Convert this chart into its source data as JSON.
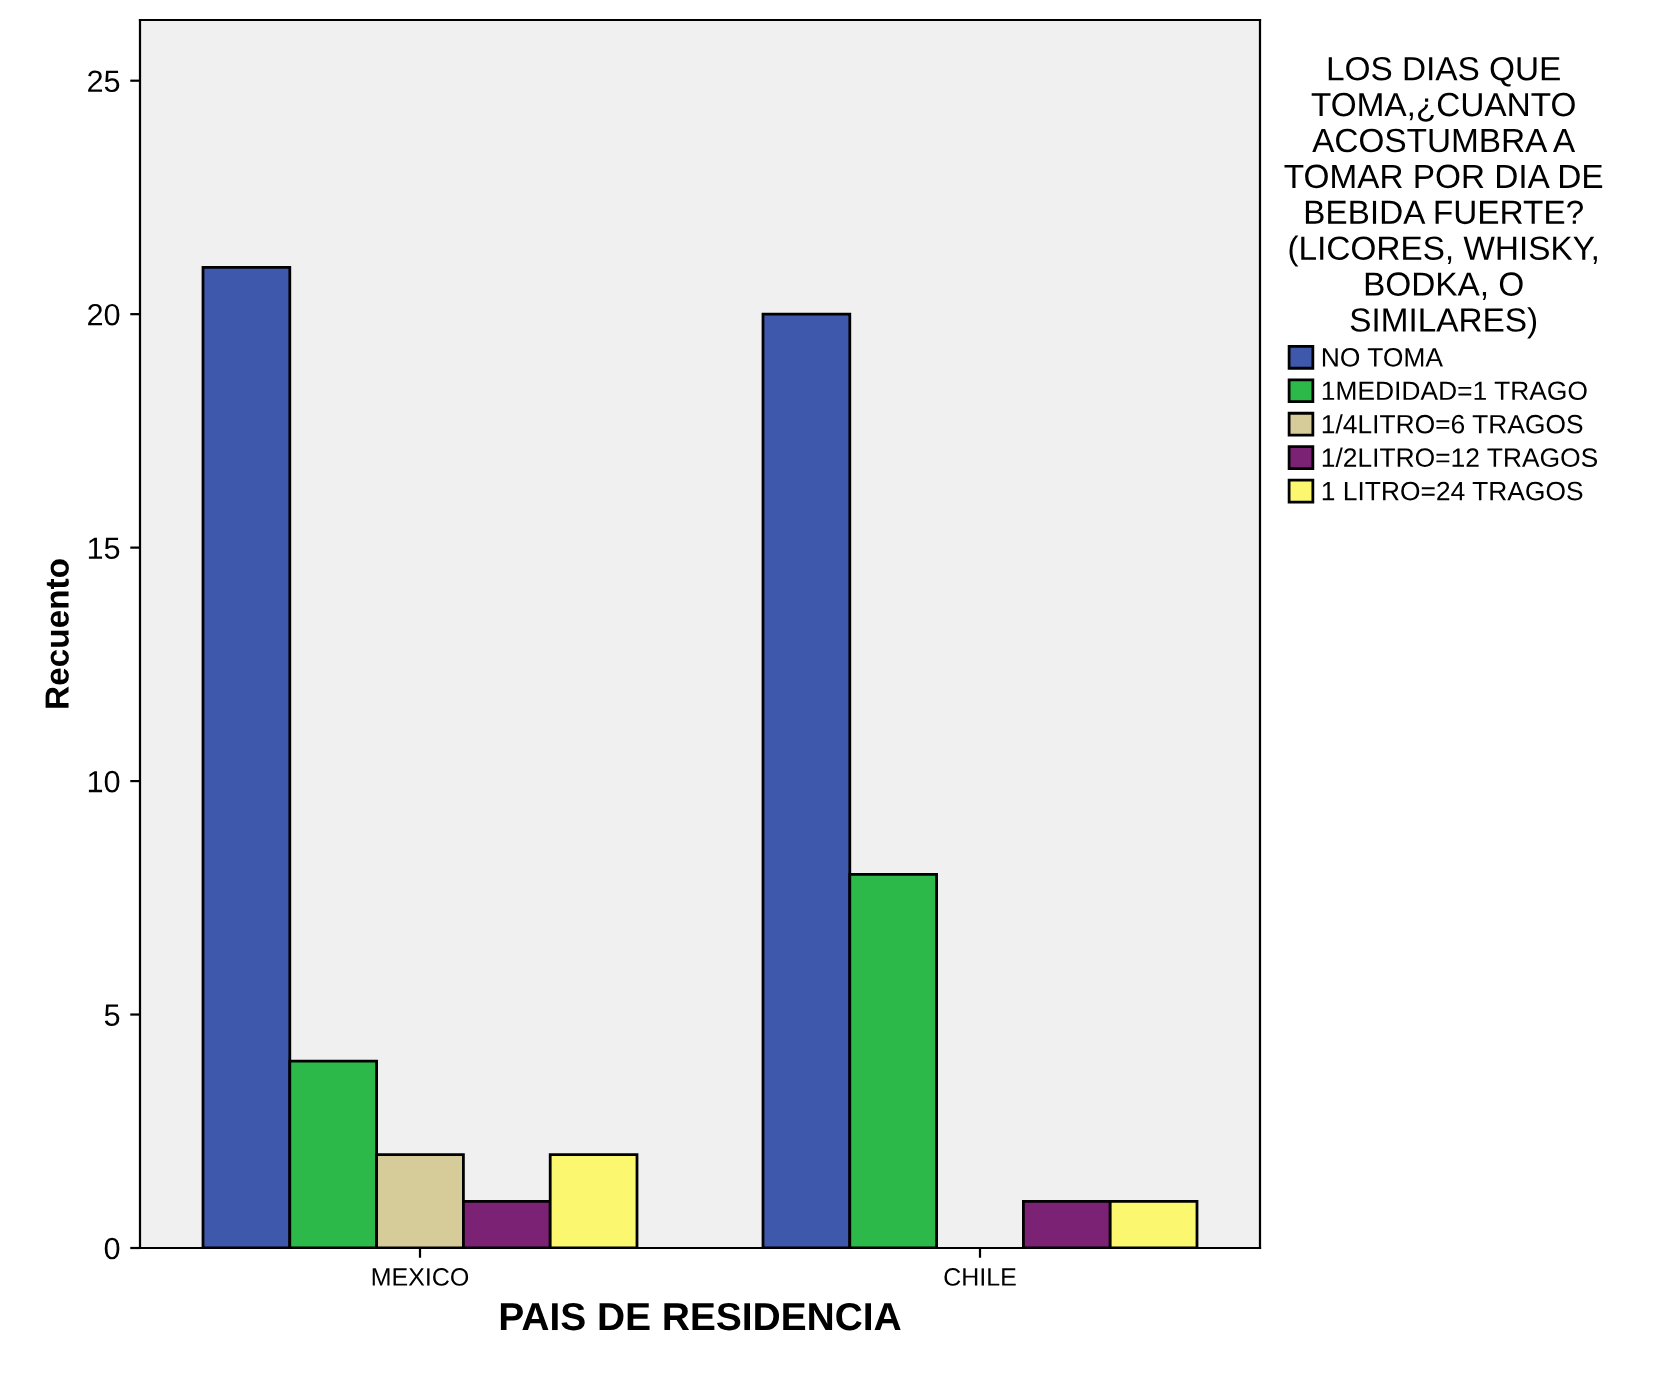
{
  "chart_data": {
    "type": "bar",
    "xlabel": "PAIS DE RESIDENCIA",
    "ylabel": "Recuento",
    "legend_title": "LOS DIAS QUE\nTOMA,¿CUANTO\nACOSTUMBRA A\nTOMAR POR DIA DE\nBEBIDA FUERTE?\n(LICORES, WHISKY,\nBODKA, O\nSIMILARES)",
    "categories": [
      "MEXICO",
      "CHILE"
    ],
    "series": [
      {
        "name": "NO TOMA",
        "color": "#3e58ac",
        "values": [
          21,
          20
        ]
      },
      {
        "name": "1MEDIDAD=1 TRAGO",
        "color": "#2db84a",
        "values": [
          4,
          8
        ]
      },
      {
        "name": "1/4LITRO=6 TRAGOS",
        "color": "#d6cc99",
        "values": [
          2,
          0
        ]
      },
      {
        "name": "1/2LITRO=12 TRAGOS",
        "color": "#7b2275",
        "values": [
          1,
          1
        ]
      },
      {
        "name": "1 LITRO=24 TRAGOS",
        "color": "#fbf870",
        "values": [
          2,
          1
        ]
      }
    ],
    "ylim": [
      0,
      26.3
    ],
    "yticks": [
      0,
      5,
      10,
      15,
      20,
      25
    ],
    "grid": false,
    "legend": "right"
  }
}
